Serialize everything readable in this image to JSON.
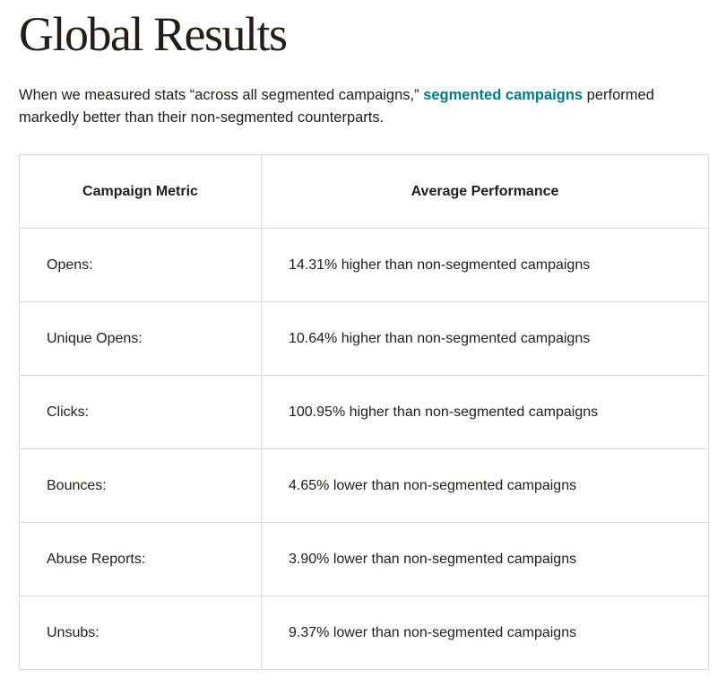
{
  "title": "Global Results",
  "intro": {
    "before": "When we measured stats “across all segmented campaigns,” ",
    "link": "segmented campaigns",
    "after": " performed markedly better than their non-segmented counterparts."
  },
  "table": {
    "headers": [
      "Campaign Metric",
      "Average Performance"
    ],
    "rows": [
      {
        "metric": "Opens:",
        "performance": "14.31% higher than non-segmented campaigns"
      },
      {
        "metric": "Unique Opens:",
        "performance": "10.64% higher than non-segmented campaigns"
      },
      {
        "metric": "Clicks:",
        "performance": "100.95% higher than non-segmented campaigns"
      },
      {
        "metric": "Bounces:",
        "performance": "4.65% lower than non-segmented campaigns"
      },
      {
        "metric": "Abuse Reports:",
        "performance": "3.90% lower than non-segmented campaigns"
      },
      {
        "metric": "Unsubs:",
        "performance": "9.37% lower than non-segmented campaigns"
      }
    ]
  },
  "colors": {
    "text": "#241c15",
    "link": "#007c89",
    "border": "#dcdad6"
  }
}
